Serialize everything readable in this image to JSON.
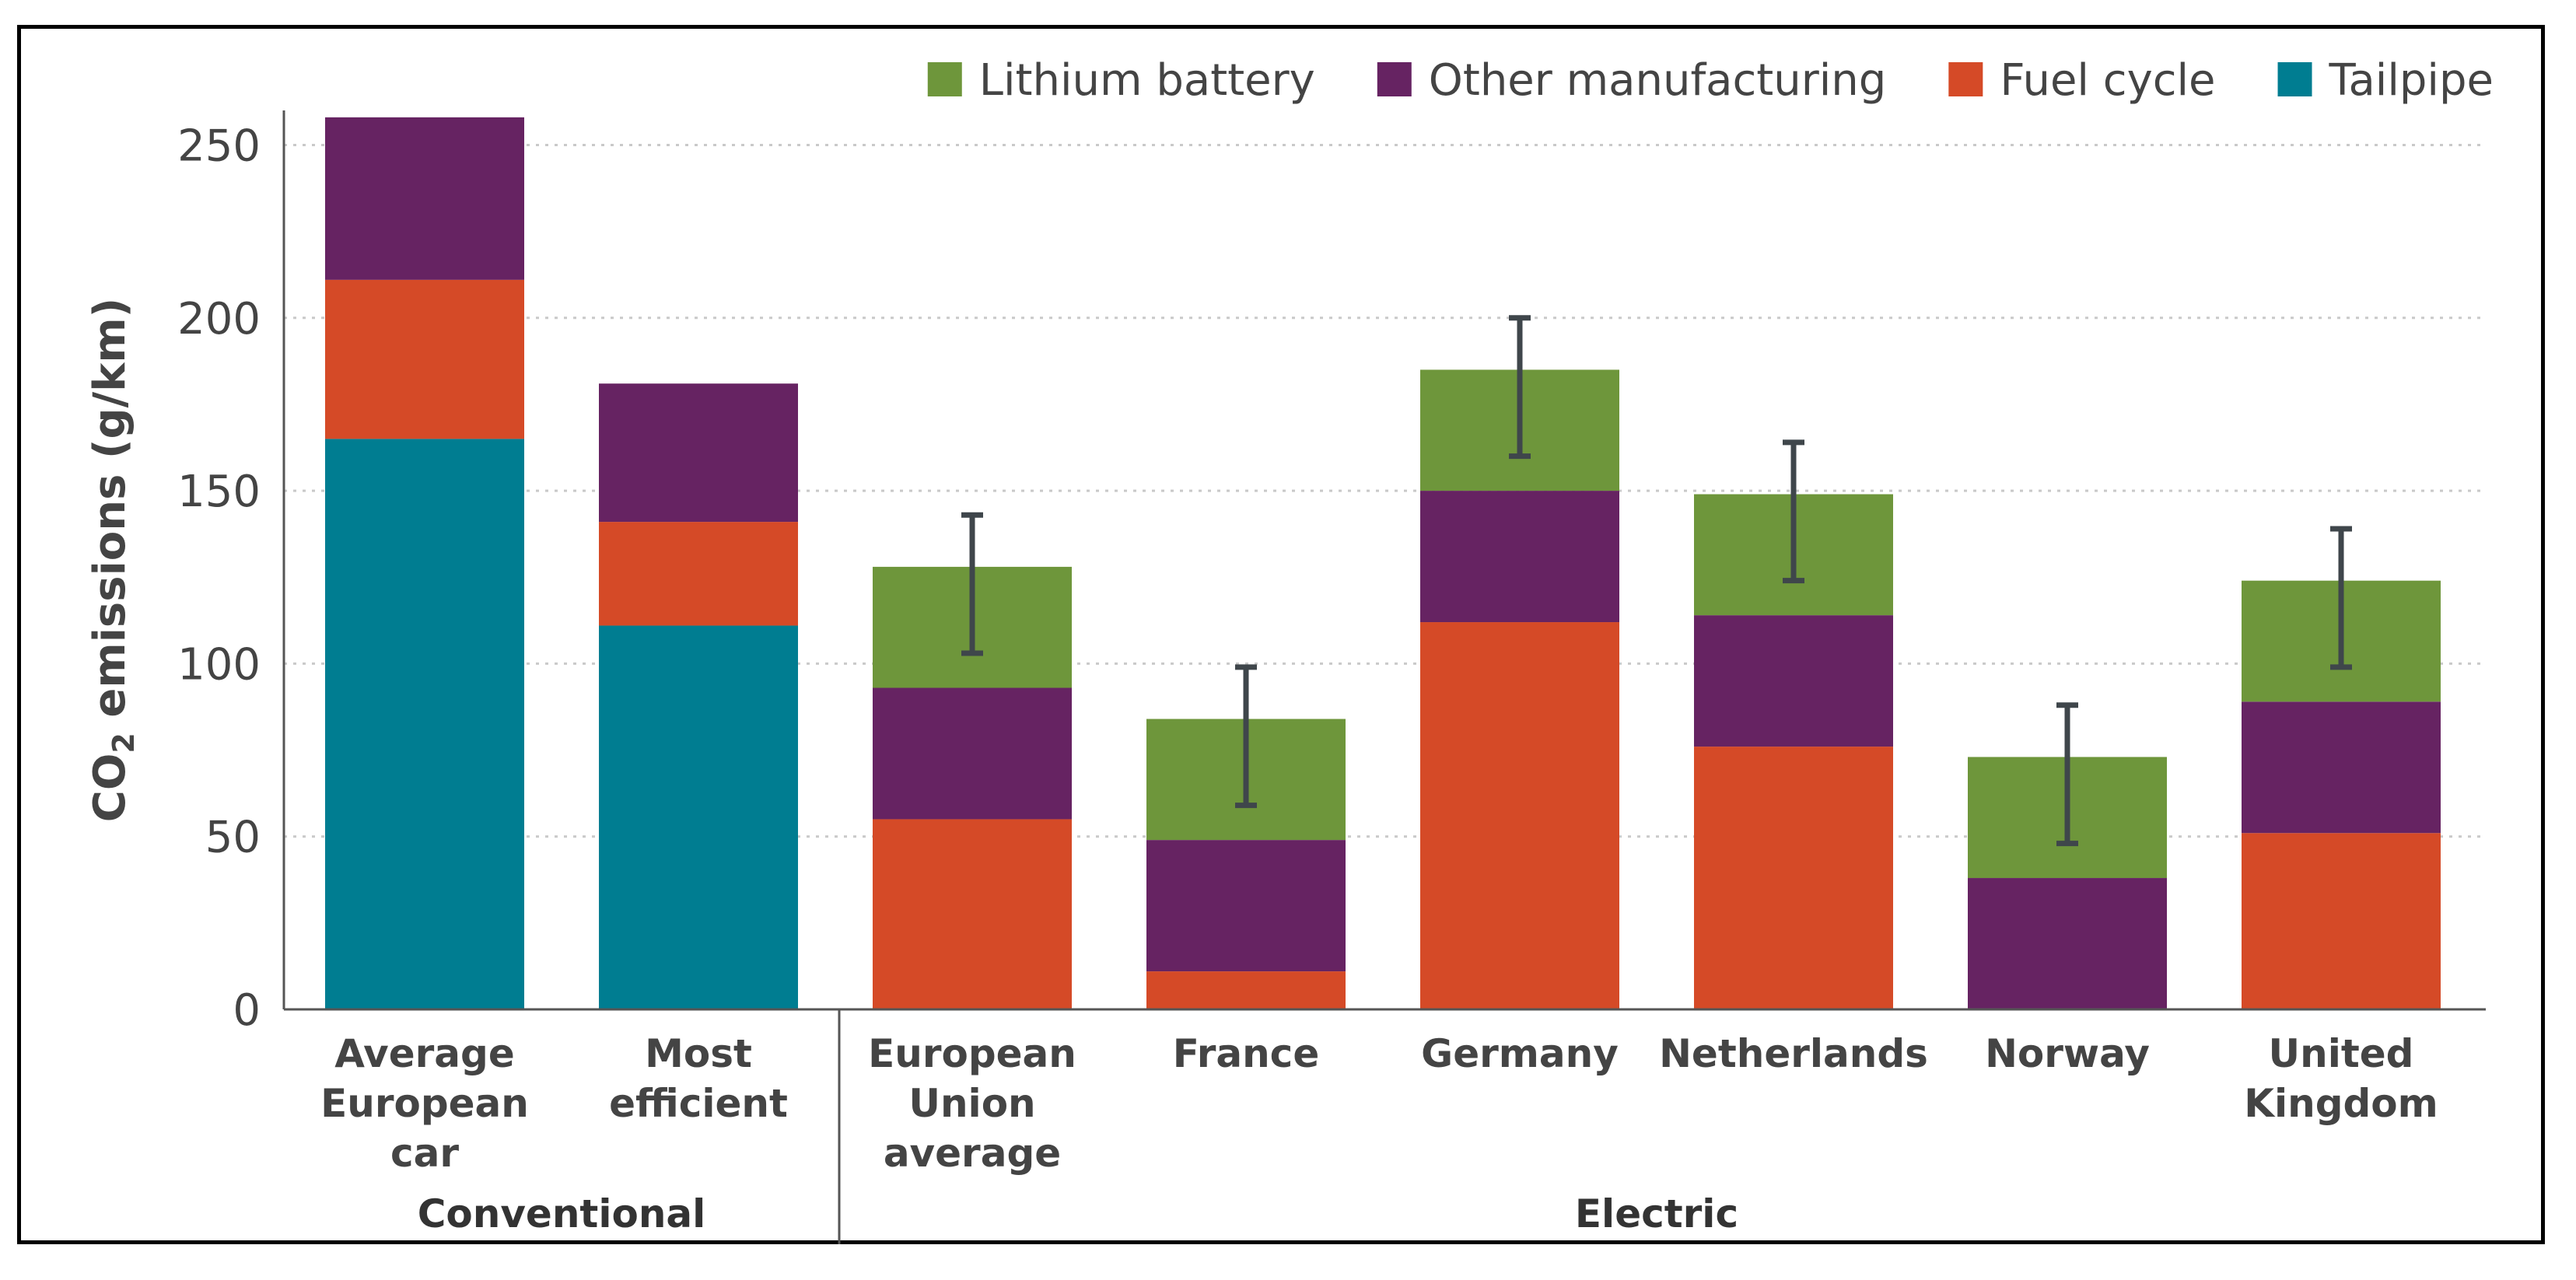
{
  "chart_data": {
    "type": "bar",
    "stacked": true,
    "title": "",
    "ylabel_main": "CO",
    "ylabel_sub": "2",
    "ylabel_rest": " emissions (g/km)",
    "ylim": [
      0,
      260
    ],
    "yticks": [
      0,
      50,
      100,
      150,
      200,
      250
    ],
    "grid": true,
    "categories": [
      [
        "Average",
        "European",
        "car"
      ],
      [
        "Most",
        "efficient"
      ],
      [
        "European",
        "Union",
        "average"
      ],
      [
        "France"
      ],
      [
        "Germany"
      ],
      [
        "Netherlands"
      ],
      [
        "Norway"
      ],
      [
        "United",
        "Kingdom"
      ]
    ],
    "groups": [
      {
        "label": "Conventional",
        "from": 0,
        "to": 1
      },
      {
        "label": "Electric",
        "from": 2,
        "to": 7
      }
    ],
    "series": [
      {
        "name": "Tailpipe",
        "color": "#007d91",
        "values": [
          165,
          111,
          0,
          0,
          0,
          0,
          0,
          0
        ]
      },
      {
        "name": "Fuel cycle",
        "color": "#d54a27",
        "values": [
          46,
          30,
          55,
          11,
          112,
          76,
          0,
          51
        ]
      },
      {
        "name": "Other manufacturing",
        "color": "#662362",
        "values": [
          47,
          40,
          38,
          38,
          38,
          38,
          38,
          38
        ]
      },
      {
        "name": "Lithium battery",
        "color": "#6e963b",
        "values": [
          0,
          0,
          35,
          35,
          35,
          35,
          35,
          35
        ]
      }
    ],
    "legend_order": [
      "Lithium battery",
      "Other manufacturing",
      "Fuel cycle",
      "Tailpipe"
    ],
    "legend_position": "top-right",
    "error_bars": [
      null,
      null,
      [
        103,
        143
      ],
      [
        59,
        99
      ],
      [
        160,
        200
      ],
      [
        124,
        164
      ],
      [
        48,
        88
      ],
      [
        99,
        139
      ]
    ],
    "error_color": "#3f464b"
  }
}
